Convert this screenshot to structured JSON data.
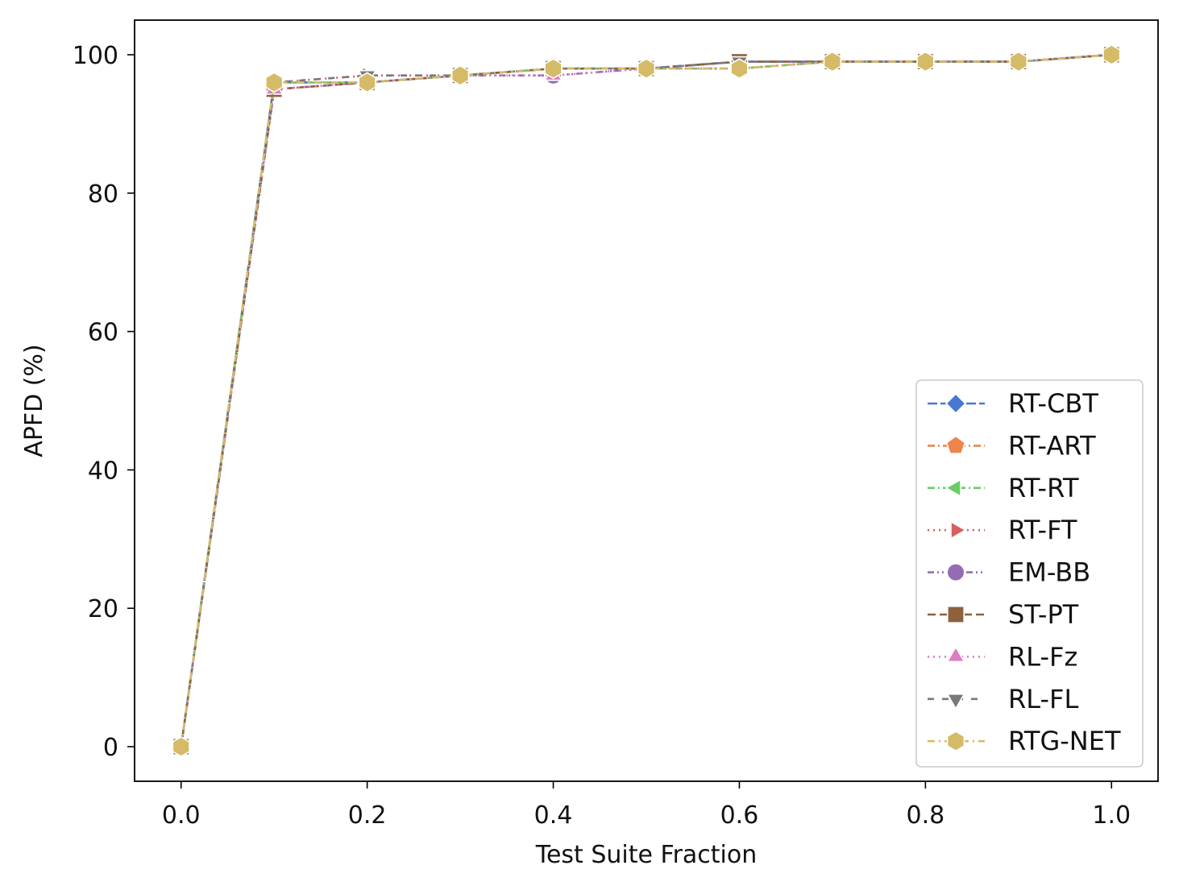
{
  "chart_data": {
    "type": "line",
    "title": "",
    "xlabel": "Test Suite Fraction",
    "ylabel": "APFD (%)",
    "xlim": [
      -0.05,
      1.05
    ],
    "ylim": [
      -5,
      105
    ],
    "xticks": [
      0.0,
      0.2,
      0.4,
      0.6,
      0.8,
      1.0
    ],
    "xtick_labels": [
      "0.0",
      "0.2",
      "0.4",
      "0.6",
      "0.8",
      "1.0"
    ],
    "yticks": [
      0,
      20,
      40,
      60,
      80,
      100
    ],
    "ytick_labels": [
      "0",
      "20",
      "40",
      "60",
      "80",
      "100"
    ],
    "grid": false,
    "legend_position": "lower-right",
    "x": [
      0.0,
      0.1,
      0.2,
      0.3,
      0.4,
      0.5,
      0.6,
      0.7,
      0.8,
      0.9,
      1.0
    ],
    "series": [
      {
        "name": "RT-CBT",
        "color": "#4878d0",
        "marker": "diamond",
        "dash": "long-dash",
        "values": [
          0,
          96,
          96,
          97,
          98,
          98,
          99,
          99,
          99,
          99,
          100
        ]
      },
      {
        "name": "RT-ART",
        "color": "#ee854a",
        "marker": "pentagon",
        "dash": "dash-dot",
        "values": [
          0,
          96,
          96,
          97,
          98,
          98,
          98,
          99,
          99,
          99,
          100
        ]
      },
      {
        "name": "RT-RT",
        "color": "#6acc64",
        "marker": "triangle-left",
        "dash": "dash-dot",
        "values": [
          0,
          96,
          96,
          97,
          98,
          98,
          98,
          99,
          99,
          99,
          100
        ]
      },
      {
        "name": "RT-FT",
        "color": "#d65f5f",
        "marker": "triangle-right",
        "dash": "dotted",
        "values": [
          0,
          96,
          97,
          97,
          98,
          98,
          98,
          99,
          99,
          99,
          100
        ]
      },
      {
        "name": "EM-BB",
        "color": "#956cb4",
        "marker": "circle",
        "dash": "dash-dot-dot",
        "values": [
          0,
          95,
          96,
          97,
          97,
          98,
          99,
          99,
          99,
          99,
          100
        ]
      },
      {
        "name": "ST-PT",
        "color": "#8c613c",
        "marker": "square",
        "dash": "dash",
        "values": [
          0,
          95,
          96,
          97,
          98,
          98,
          99,
          99,
          99,
          99,
          100
        ]
      },
      {
        "name": "RL-Fz",
        "color": "#dc7ec0",
        "marker": "triangle-up",
        "dash": "dotted",
        "values": [
          0,
          95,
          96,
          97,
          97,
          98,
          98,
          99,
          99,
          99,
          100
        ]
      },
      {
        "name": "RL-FL",
        "color": "#797979",
        "marker": "triangle-down",
        "dash": "sparse-dash",
        "values": [
          0,
          96,
          97,
          97,
          98,
          98,
          99,
          99,
          99,
          99,
          100
        ]
      },
      {
        "name": "RTG-NET",
        "color": "#d5bb67",
        "marker": "hexagon",
        "dash": "dash-dot-sparse",
        "values": [
          0,
          96,
          96,
          97,
          98,
          98,
          98,
          99,
          99,
          99,
          100
        ]
      }
    ]
  }
}
